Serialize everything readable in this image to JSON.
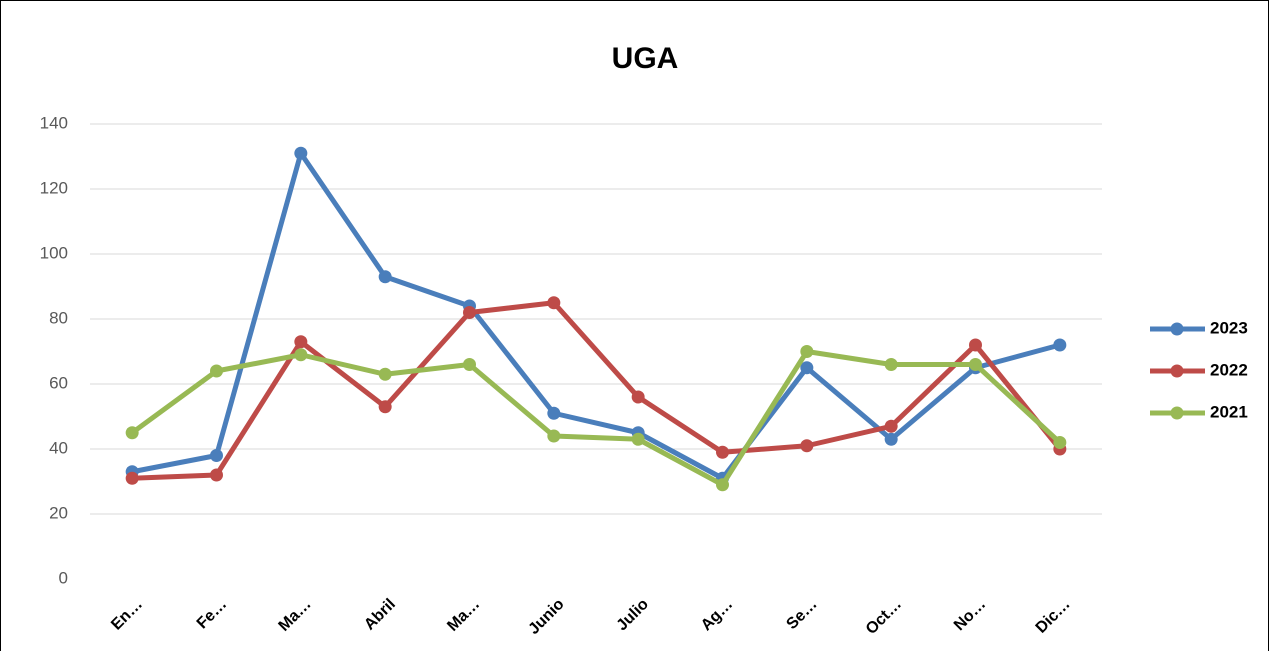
{
  "chart_data": {
    "type": "line",
    "title": "UGA",
    "categories": [
      "En…",
      "Fe…",
      "Ma…",
      "Abril",
      "Ma…",
      "Junio",
      "Julio",
      "Ag…",
      "Se…",
      "Oct…",
      "No…",
      "Dic…"
    ],
    "series": [
      {
        "name": "2023",
        "color": "#4a7ebb",
        "values": [
          33,
          38,
          131,
          93,
          84,
          51,
          45,
          31,
          65,
          43,
          65,
          72
        ]
      },
      {
        "name": "2022",
        "color": "#be4b48",
        "values": [
          31,
          32,
          73,
          53,
          82,
          85,
          56,
          39,
          41,
          47,
          72,
          40
        ]
      },
      {
        "name": "2021",
        "color": "#98b954",
        "values": [
          45,
          64,
          69,
          63,
          66,
          44,
          43,
          29,
          70,
          66,
          66,
          42
        ]
      }
    ],
    "ylim": [
      0,
      140
    ],
    "yticks": [
      0,
      20,
      40,
      60,
      80,
      100,
      120,
      140
    ],
    "grid": true,
    "legend": "right"
  }
}
